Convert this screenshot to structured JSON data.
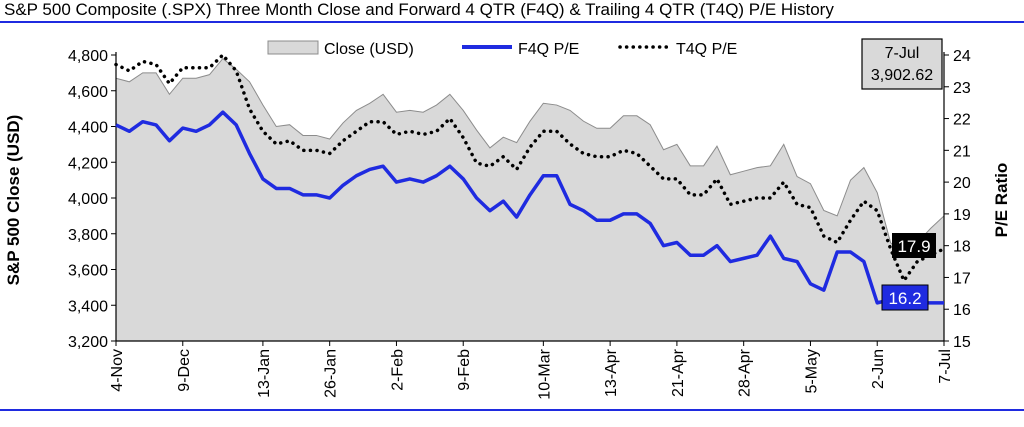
{
  "title": "S&P 500 Composite (.SPX) Three Month Close and Forward 4 QTR (F4Q) & Trailing 4 QTR (T4Q) P/E History",
  "colors": {
    "area_fill": "#d9d9d9",
    "area_stroke": "#8c8c8c",
    "f4q": "#1f2be0",
    "t4q": "#000000",
    "rule": "#1f2be0",
    "callout_gray": "#d9d9d9",
    "callout_black": "#000000",
    "callout_blue": "#1f2be0"
  },
  "chart_data": {
    "type": "line",
    "title": "S&P 500 Composite (.SPX) Three Month Close and Forward 4 QTR (F4Q) & Trailing 4 QTR (T4Q) P/E History",
    "x_ticks": [
      "4-Nov",
      "9-Dec",
      "13-Jan",
      "26-Jan",
      "2-Feb",
      "9-Feb",
      "10-Mar",
      "13-Apr",
      "21-Apr",
      "28-Apr",
      "5-May",
      "2-Jun",
      "7-Jul"
    ],
    "x_tick_positions": [
      0,
      5,
      11,
      16,
      21,
      26,
      32,
      37,
      42,
      47,
      52,
      57,
      62
    ],
    "ylabel": "S&P 500 Close (USD)",
    "ylim": [
      3200,
      4800
    ],
    "yticks": [
      3200,
      3400,
      3600,
      3800,
      4000,
      4200,
      4400,
      4600,
      4800
    ],
    "y2label": "P/E Ratio",
    "y2lim": [
      15,
      24
    ],
    "y2ticks": [
      15,
      16,
      17,
      18,
      19,
      20,
      21,
      22,
      23,
      24
    ],
    "legend": [
      "Close (USD)",
      "F4Q P/E",
      "T4Q P/E"
    ],
    "legend_position": "top",
    "grid": false,
    "series": [
      {
        "name": "Close (USD)",
        "kind": "area",
        "axis": "left",
        "values": [
          4670,
          4650,
          4700,
          4700,
          4580,
          4670,
          4670,
          4690,
          4780,
          4720,
          4650,
          4520,
          4400,
          4410,
          4350,
          4350,
          4330,
          4420,
          4490,
          4530,
          4580,
          4480,
          4490,
          4480,
          4520,
          4580,
          4490,
          4380,
          4280,
          4340,
          4310,
          4430,
          4530,
          4520,
          4490,
          4430,
          4390,
          4390,
          4460,
          4460,
          4410,
          4270,
          4300,
          4180,
          4180,
          4290,
          4130,
          4150,
          4170,
          4180,
          4300,
          4120,
          4080,
          3930,
          3900,
          4100,
          4170,
          4030,
          3750,
          3680,
          3750,
          3830,
          3900
        ]
      },
      {
        "name": "F4Q P/E",
        "kind": "line",
        "axis": "right",
        "values": [
          21.8,
          21.6,
          21.9,
          21.8,
          21.3,
          21.7,
          21.6,
          21.8,
          22.2,
          21.8,
          20.9,
          20.1,
          19.8,
          19.8,
          19.6,
          19.6,
          19.5,
          19.9,
          20.2,
          20.4,
          20.5,
          20.0,
          20.1,
          20.0,
          20.2,
          20.5,
          20.1,
          19.5,
          19.1,
          19.4,
          18.9,
          19.6,
          20.2,
          20.2,
          19.3,
          19.1,
          18.8,
          18.8,
          19.0,
          19.0,
          18.7,
          18.0,
          18.1,
          17.7,
          17.7,
          18.0,
          17.5,
          17.6,
          17.7,
          18.3,
          17.6,
          17.5,
          16.8,
          16.6,
          17.8,
          17.8,
          17.5,
          16.2,
          16.3,
          16.3,
          16.2,
          16.2,
          16.2
        ]
      },
      {
        "name": "T4Q P/E",
        "kind": "dotted",
        "axis": "right",
        "values": [
          23.7,
          23.5,
          23.8,
          23.7,
          23.1,
          23.6,
          23.6,
          23.6,
          24.0,
          23.5,
          22.3,
          21.6,
          21.2,
          21.3,
          21.0,
          21.0,
          20.9,
          21.3,
          21.6,
          21.9,
          21.9,
          21.5,
          21.6,
          21.5,
          21.6,
          22.0,
          21.4,
          20.6,
          20.5,
          20.8,
          20.4,
          21.1,
          21.6,
          21.6,
          21.2,
          20.9,
          20.8,
          20.8,
          21.0,
          20.9,
          20.5,
          20.1,
          20.1,
          19.6,
          19.6,
          20.1,
          19.3,
          19.4,
          19.5,
          19.5,
          20.0,
          19.3,
          19.2,
          18.3,
          18.1,
          18.8,
          19.4,
          19.1,
          17.9,
          16.9,
          17.5,
          17.7,
          17.9
        ]
      }
    ],
    "annotations": [
      {
        "label_date": "7-Jul",
        "label_value": "3,902.62",
        "style": "gray-box"
      },
      {
        "label_value": "17.9",
        "series": "T4Q P/E",
        "style": "black-box"
      },
      {
        "label_value": "16.2",
        "series": "F4Q P/E",
        "style": "blue-box"
      }
    ]
  }
}
